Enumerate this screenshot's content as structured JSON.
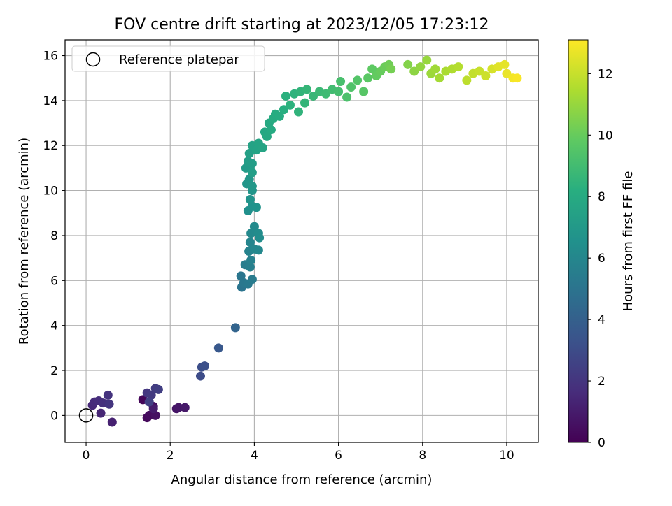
{
  "chart_data": {
    "type": "scatter",
    "title": "FOV centre drift starting at 2023/12/05 17:23:12",
    "xlabel": "Angular distance from reference (arcmin)",
    "ylabel": "Rotation from reference (arcmin)",
    "xlim": [
      -0.5,
      10.75
    ],
    "ylim": [
      -1.2,
      16.7
    ],
    "xticks": [
      0,
      2,
      4,
      6,
      8,
      10
    ],
    "yticks": [
      0,
      2,
      4,
      6,
      8,
      10,
      12,
      14,
      16
    ],
    "grid": true,
    "legend": {
      "position": "top-left",
      "entries": [
        "Reference platepar"
      ]
    },
    "reference_point": {
      "x": 0,
      "y": 0,
      "label": "Reference platepar"
    },
    "colorbar": {
      "label": "Hours from first FF file",
      "colormap": "viridis",
      "range": [
        0,
        13.1
      ],
      "ticks": [
        0,
        2,
        4,
        6,
        8,
        10,
        12
      ]
    },
    "color_scale": [
      "#440154",
      "#472d7b",
      "#3b528b",
      "#2c728e",
      "#21918c",
      "#28ae80",
      "#5ec962",
      "#addc30",
      "#fde725"
    ],
    "points": [
      {
        "x": 1.35,
        "y": 0.7,
        "t": 0.2
      },
      {
        "x": 1.45,
        "y": -0.1,
        "t": 0.3
      },
      {
        "x": 1.5,
        "y": 0.0,
        "t": 0.4
      },
      {
        "x": 1.6,
        "y": 0.4,
        "t": 0.5
      },
      {
        "x": 1.65,
        "y": 0.0,
        "t": 0.6
      },
      {
        "x": 2.15,
        "y": 0.3,
        "t": 0.7
      },
      {
        "x": 2.2,
        "y": 0.35,
        "t": 0.8
      },
      {
        "x": 2.35,
        "y": 0.35,
        "t": 0.9
      },
      {
        "x": 1.6,
        "y": 0.3,
        "t": 1.0
      },
      {
        "x": 0.62,
        "y": -0.3,
        "t": 1.2
      },
      {
        "x": 0.35,
        "y": 0.1,
        "t": 1.4
      },
      {
        "x": 0.15,
        "y": 0.45,
        "t": 1.5
      },
      {
        "x": 0.2,
        "y": 0.6,
        "t": 1.6
      },
      {
        "x": 0.3,
        "y": 0.65,
        "t": 1.7
      },
      {
        "x": 0.4,
        "y": 0.55,
        "t": 1.8
      },
      {
        "x": 0.52,
        "y": 0.9,
        "t": 1.9
      },
      {
        "x": 0.55,
        "y": 0.5,
        "t": 2.0
      },
      {
        "x": 1.45,
        "y": 1.0,
        "t": 2.1
      },
      {
        "x": 1.55,
        "y": 0.9,
        "t": 2.2
      },
      {
        "x": 1.65,
        "y": 1.2,
        "t": 2.3
      },
      {
        "x": 1.72,
        "y": 1.15,
        "t": 2.4
      },
      {
        "x": 1.5,
        "y": 0.6,
        "t": 2.5
      },
      {
        "x": 2.72,
        "y": 1.75,
        "t": 3.0
      },
      {
        "x": 2.75,
        "y": 2.15,
        "t": 3.1
      },
      {
        "x": 2.82,
        "y": 2.2,
        "t": 3.2
      },
      {
        "x": 3.15,
        "y": 3.0,
        "t": 3.6
      },
      {
        "x": 3.55,
        "y": 3.9,
        "t": 4.2
      },
      {
        "x": 3.7,
        "y": 5.7,
        "t": 5.0
      },
      {
        "x": 3.68,
        "y": 6.2,
        "t": 5.1
      },
      {
        "x": 3.75,
        "y": 5.9,
        "t": 5.2
      },
      {
        "x": 3.85,
        "y": 5.85,
        "t": 5.3
      },
      {
        "x": 3.95,
        "y": 6.05,
        "t": 5.4
      },
      {
        "x": 3.78,
        "y": 6.7,
        "t": 5.5
      },
      {
        "x": 3.9,
        "y": 6.6,
        "t": 5.6
      },
      {
        "x": 3.92,
        "y": 6.9,
        "t": 5.7
      },
      {
        "x": 3.87,
        "y": 7.3,
        "t": 5.8
      },
      {
        "x": 3.9,
        "y": 7.7,
        "t": 5.9
      },
      {
        "x": 4.0,
        "y": 7.4,
        "t": 6.0
      },
      {
        "x": 4.1,
        "y": 7.35,
        "t": 6.1
      },
      {
        "x": 3.92,
        "y": 8.1,
        "t": 6.15
      },
      {
        "x": 4.0,
        "y": 8.4,
        "t": 6.2
      },
      {
        "x": 4.1,
        "y": 8.1,
        "t": 6.3
      },
      {
        "x": 4.12,
        "y": 7.9,
        "t": 6.35
      },
      {
        "x": 3.85,
        "y": 9.1,
        "t": 6.5
      },
      {
        "x": 3.95,
        "y": 9.3,
        "t": 6.6
      },
      {
        "x": 4.05,
        "y": 9.25,
        "t": 6.65
      },
      {
        "x": 3.9,
        "y": 9.6,
        "t": 6.7
      },
      {
        "x": 3.95,
        "y": 10.0,
        "t": 6.8
      },
      {
        "x": 3.82,
        "y": 10.3,
        "t": 6.85
      },
      {
        "x": 3.88,
        "y": 10.5,
        "t": 6.9
      },
      {
        "x": 3.95,
        "y": 10.2,
        "t": 6.95
      },
      {
        "x": 3.8,
        "y": 11.0,
        "t": 7.1
      },
      {
        "x": 3.85,
        "y": 11.3,
        "t": 7.2
      },
      {
        "x": 3.95,
        "y": 11.2,
        "t": 7.25
      },
      {
        "x": 3.95,
        "y": 10.8,
        "t": 7.3
      },
      {
        "x": 3.88,
        "y": 11.65,
        "t": 7.4
      },
      {
        "x": 3.95,
        "y": 12.0,
        "t": 7.5
      },
      {
        "x": 4.05,
        "y": 11.8,
        "t": 7.55
      },
      {
        "x": 4.1,
        "y": 12.1,
        "t": 7.6
      },
      {
        "x": 4.2,
        "y": 11.9,
        "t": 7.65
      },
      {
        "x": 4.25,
        "y": 12.6,
        "t": 7.8
      },
      {
        "x": 4.3,
        "y": 12.4,
        "t": 7.85
      },
      {
        "x": 4.35,
        "y": 13.0,
        "t": 7.9
      },
      {
        "x": 4.4,
        "y": 12.7,
        "t": 7.95
      },
      {
        "x": 4.45,
        "y": 13.2,
        "t": 8.0
      },
      {
        "x": 4.5,
        "y": 13.4,
        "t": 8.05
      },
      {
        "x": 4.6,
        "y": 13.3,
        "t": 8.1
      },
      {
        "x": 4.7,
        "y": 13.6,
        "t": 8.2
      },
      {
        "x": 4.75,
        "y": 14.2,
        "t": 8.3
      },
      {
        "x": 4.85,
        "y": 13.8,
        "t": 8.35
      },
      {
        "x": 4.95,
        "y": 14.3,
        "t": 8.4
      },
      {
        "x": 5.05,
        "y": 13.5,
        "t": 8.45
      },
      {
        "x": 5.1,
        "y": 14.4,
        "t": 8.5
      },
      {
        "x": 5.2,
        "y": 13.9,
        "t": 8.55
      },
      {
        "x": 5.25,
        "y": 14.5,
        "t": 8.6
      },
      {
        "x": 5.4,
        "y": 14.2,
        "t": 8.7
      },
      {
        "x": 5.55,
        "y": 14.4,
        "t": 8.8
      },
      {
        "x": 5.7,
        "y": 14.3,
        "t": 8.9
      },
      {
        "x": 5.85,
        "y": 14.5,
        "t": 9.0
      },
      {
        "x": 6.0,
        "y": 14.4,
        "t": 9.1
      },
      {
        "x": 6.05,
        "y": 14.85,
        "t": 9.2
      },
      {
        "x": 6.2,
        "y": 14.15,
        "t": 9.3
      },
      {
        "x": 6.3,
        "y": 14.6,
        "t": 9.4
      },
      {
        "x": 6.45,
        "y": 14.9,
        "t": 9.5
      },
      {
        "x": 6.6,
        "y": 14.4,
        "t": 9.6
      },
      {
        "x": 6.7,
        "y": 15.0,
        "t": 9.7
      },
      {
        "x": 6.8,
        "y": 15.4,
        "t": 9.8
      },
      {
        "x": 6.9,
        "y": 15.1,
        "t": 9.9
      },
      {
        "x": 7.0,
        "y": 15.3,
        "t": 10.0
      },
      {
        "x": 7.1,
        "y": 15.5,
        "t": 10.1
      },
      {
        "x": 7.2,
        "y": 15.6,
        "t": 10.2
      },
      {
        "x": 7.25,
        "y": 15.4,
        "t": 10.3
      },
      {
        "x": 7.65,
        "y": 15.6,
        "t": 10.6
      },
      {
        "x": 7.8,
        "y": 15.3,
        "t": 10.8
      },
      {
        "x": 7.95,
        "y": 15.5,
        "t": 10.9
      },
      {
        "x": 8.1,
        "y": 15.8,
        "t": 11.0
      },
      {
        "x": 8.2,
        "y": 15.2,
        "t": 11.1
      },
      {
        "x": 8.3,
        "y": 15.4,
        "t": 11.2
      },
      {
        "x": 8.4,
        "y": 15.0,
        "t": 11.3
      },
      {
        "x": 8.55,
        "y": 15.3,
        "t": 11.4
      },
      {
        "x": 8.7,
        "y": 15.4,
        "t": 11.5
      },
      {
        "x": 8.85,
        "y": 15.5,
        "t": 11.6
      },
      {
        "x": 9.05,
        "y": 14.9,
        "t": 11.8
      },
      {
        "x": 9.2,
        "y": 15.2,
        "t": 11.9
      },
      {
        "x": 9.35,
        "y": 15.3,
        "t": 12.0
      },
      {
        "x": 9.5,
        "y": 15.1,
        "t": 12.1
      },
      {
        "x": 9.65,
        "y": 15.4,
        "t": 12.3
      },
      {
        "x": 9.8,
        "y": 15.5,
        "t": 12.5
      },
      {
        "x": 9.95,
        "y": 15.6,
        "t": 12.6
      },
      {
        "x": 10.0,
        "y": 15.2,
        "t": 12.7
      },
      {
        "x": 10.15,
        "y": 15.0,
        "t": 12.9
      },
      {
        "x": 10.25,
        "y": 15.0,
        "t": 13.0
      }
    ]
  }
}
